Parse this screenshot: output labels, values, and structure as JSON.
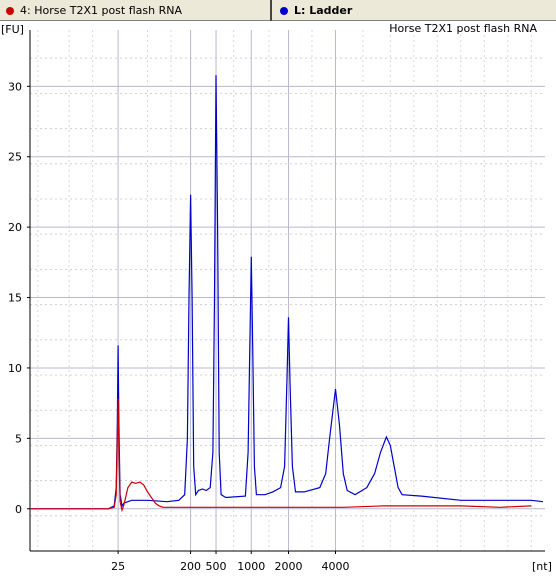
{
  "tabs": [
    {
      "label": "4: Horse T2X1 post flash RNA",
      "color": "#cc0000"
    },
    {
      "label": "L: Ladder",
      "color": "#0000cc"
    }
  ],
  "chart_data": {
    "type": "line",
    "title": "Horse T2X1 post flash RNA",
    "ylabel": "[FU]",
    "xlabel": "[nt]",
    "ylim": [
      -3,
      34
    ],
    "yticks": [
      0,
      5,
      10,
      15,
      20,
      25,
      30
    ],
    "xticks": [
      {
        "label": "25",
        "t": 22.5
      },
      {
        "label": "200",
        "t": 41
      },
      {
        "label": "500",
        "t": 47.5
      },
      {
        "label": "1000",
        "t": 56.5
      },
      {
        "label": "2000",
        "t": 66
      },
      {
        "label": "4000",
        "t": 78
      }
    ],
    "series": [
      {
        "name": "L: Ladder",
        "color": "#0000cc",
        "points": [
          [
            0,
            0
          ],
          [
            20,
            0
          ],
          [
            21.5,
            0.2
          ],
          [
            22,
            1.5
          ],
          [
            22.3,
            6
          ],
          [
            22.5,
            11.6
          ],
          [
            22.7,
            6
          ],
          [
            23,
            1
          ],
          [
            23.5,
            0.2
          ],
          [
            24,
            0.4
          ],
          [
            26,
            0.6
          ],
          [
            30,
            0.6
          ],
          [
            35,
            0.5
          ],
          [
            38,
            0.6
          ],
          [
            39.5,
            1
          ],
          [
            40.2,
            5
          ],
          [
            40.6,
            15
          ],
          [
            41,
            22.3
          ],
          [
            41.4,
            15
          ],
          [
            41.8,
            3
          ],
          [
            42.3,
            1
          ],
          [
            43,
            1.3
          ],
          [
            44,
            1.4
          ],
          [
            45,
            1.3
          ],
          [
            46,
            1.5
          ],
          [
            46.7,
            4
          ],
          [
            47.1,
            15
          ],
          [
            47.5,
            30.8
          ],
          [
            47.9,
            20
          ],
          [
            48.3,
            4
          ],
          [
            48.8,
            1
          ],
          [
            50,
            0.8
          ],
          [
            55,
            0.9
          ],
          [
            55.7,
            4
          ],
          [
            56.1,
            11
          ],
          [
            56.5,
            17.9
          ],
          [
            56.9,
            11
          ],
          [
            57.3,
            3
          ],
          [
            57.8,
            1
          ],
          [
            60,
            1
          ],
          [
            62,
            1.2
          ],
          [
            64,
            1.5
          ],
          [
            65,
            3
          ],
          [
            65.6,
            9
          ],
          [
            66,
            13.6
          ],
          [
            66.4,
            9
          ],
          [
            67,
            3
          ],
          [
            67.8,
            1.2
          ],
          [
            70,
            1.2
          ],
          [
            74,
            1.5
          ],
          [
            75.5,
            2.5
          ],
          [
            76.5,
            5
          ],
          [
            78,
            8.5
          ],
          [
            79,
            6
          ],
          [
            80,
            2.5
          ],
          [
            81,
            1.3
          ],
          [
            83,
            1
          ],
          [
            86,
            1.5
          ],
          [
            88,
            2.5
          ],
          [
            89.5,
            4
          ],
          [
            91,
            5.1
          ],
          [
            92,
            4.5
          ],
          [
            93,
            3
          ],
          [
            94,
            1.5
          ],
          [
            95,
            1
          ],
          [
            100,
            0.9
          ],
          [
            110,
            0.6
          ],
          [
            120,
            0.6
          ],
          [
            125,
            0.6
          ],
          [
            128,
            0.6
          ],
          [
            131,
            0.5
          ]
        ]
      },
      {
        "name": "4: Horse T2X1 post flash RNA",
        "color": "#cc0000",
        "points": [
          [
            0,
            0
          ],
          [
            20,
            0
          ],
          [
            21.5,
            0.1
          ],
          [
            22,
            1
          ],
          [
            22.3,
            5
          ],
          [
            22.5,
            7.8
          ],
          [
            22.7,
            4
          ],
          [
            23,
            0.5
          ],
          [
            23.5,
            -0.1
          ],
          [
            24,
            0.3
          ],
          [
            25,
            1.5
          ],
          [
            26,
            1.9
          ],
          [
            27,
            1.8
          ],
          [
            28,
            1.9
          ],
          [
            29,
            1.7
          ],
          [
            30,
            1.2
          ],
          [
            31,
            0.8
          ],
          [
            32,
            0.4
          ],
          [
            33,
            0.2
          ],
          [
            34,
            0.1
          ],
          [
            40,
            0.1
          ],
          [
            50,
            0.1
          ],
          [
            60,
            0.1
          ],
          [
            70,
            0.1
          ],
          [
            80,
            0.1
          ],
          [
            90,
            0.2
          ],
          [
            100,
            0.2
          ],
          [
            110,
            0.2
          ],
          [
            120,
            0.1
          ],
          [
            128,
            0.2
          ]
        ]
      }
    ]
  }
}
